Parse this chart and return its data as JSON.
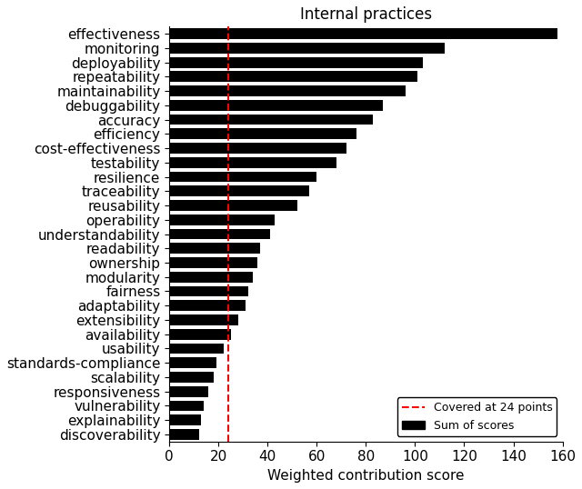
{
  "title": "Internal practices",
  "xlabel": "Weighted contribution score",
  "categories": [
    "effectiveness",
    "monitoring",
    "deployability",
    "repeatability",
    "maintainability",
    "debuggability",
    "accuracy",
    "efficiency",
    "cost-effectiveness",
    "testability",
    "resilience",
    "traceability",
    "reusability",
    "operability",
    "understandability",
    "readability",
    "ownership",
    "modularity",
    "fairness",
    "adaptability",
    "extensibility",
    "availability",
    "usability",
    "standards-compliance",
    "scalability",
    "responsiveness",
    "vulnerability",
    "explainability",
    "discoverability"
  ],
  "values": [
    158,
    112,
    103,
    101,
    96,
    87,
    83,
    76,
    72,
    68,
    60,
    57,
    52,
    43,
    41,
    37,
    36,
    34,
    32,
    31,
    28,
    25,
    22,
    19,
    18,
    16,
    14,
    13,
    12
  ],
  "bar_color": "#000000",
  "vline_x": 24,
  "vline_color": "#ff0000",
  "xlim": [
    0,
    160
  ],
  "xticks": [
    0,
    20,
    40,
    60,
    80,
    100,
    120,
    140,
    160
  ],
  "legend_vline_label": "Covered at 24 points",
  "legend_bar_label": "Sum of scores",
  "title_fontsize": 12,
  "label_fontsize": 11,
  "tick_fontsize": 11
}
